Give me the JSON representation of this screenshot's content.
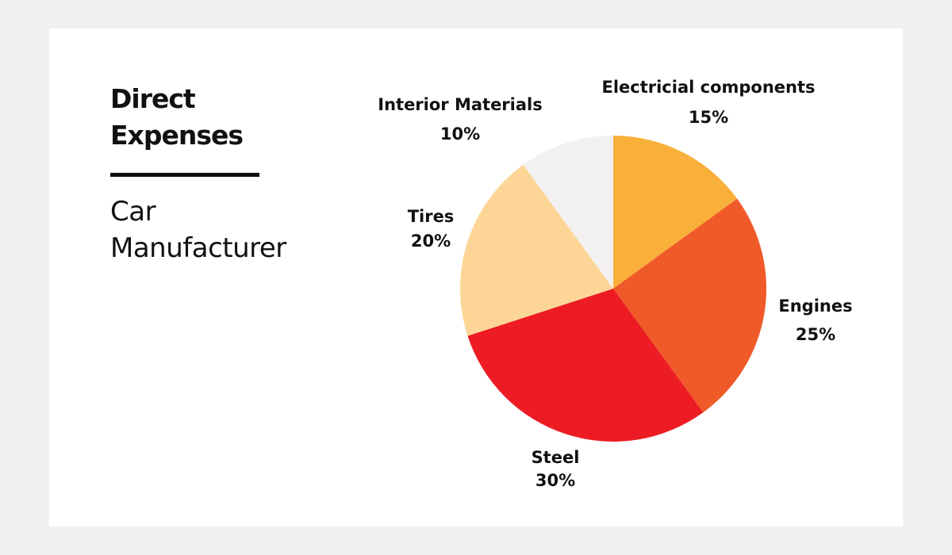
{
  "chart_data": {
    "type": "pie",
    "title": "Direct Expenses",
    "subtitle": "Car Manufacturer",
    "categories": [
      "Electricial components",
      "Engines",
      "Steel",
      "Tires",
      "Interior Materials"
    ],
    "values": [
      15,
      25,
      30,
      20,
      10
    ],
    "value_labels": [
      "15%",
      "25%",
      "30%",
      "20%",
      "10%"
    ],
    "colors": [
      "#f9b03b",
      "#f05a28",
      "#ed1c24",
      "#fdd697",
      "#f2f0f0"
    ]
  }
}
